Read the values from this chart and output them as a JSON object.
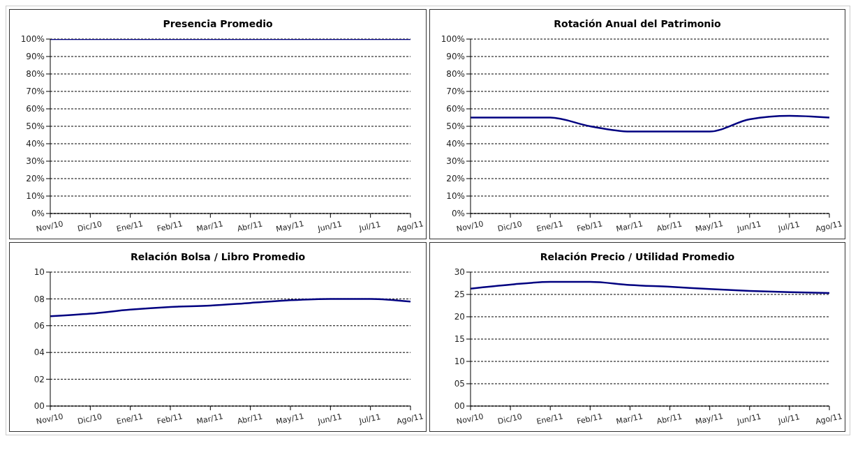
{
  "chart_data": [
    {
      "type": "line",
      "title": "Presencia Promedio",
      "categories": [
        "Nov/10",
        "Dic/10",
        "Ene/11",
        "Feb/11",
        "Mar/11",
        "Abr/11",
        "May/11",
        "Jun/11",
        "Jul/11",
        "Ago/11"
      ],
      "series": [
        {
          "color": "#000080",
          "values": [
            100,
            100,
            100,
            100,
            100,
            100,
            100,
            100,
            100,
            100
          ]
        }
      ],
      "ylim": [
        0,
        100
      ],
      "yticks": [
        {
          "value": 0,
          "label": "0%"
        },
        {
          "value": 10,
          "label": "10%"
        },
        {
          "value": 20,
          "label": "20%"
        },
        {
          "value": 30,
          "label": "30%"
        },
        {
          "value": 40,
          "label": "40%"
        },
        {
          "value": 50,
          "label": "50%"
        },
        {
          "value": 60,
          "label": "60%"
        },
        {
          "value": 70,
          "label": "70%"
        },
        {
          "value": 80,
          "label": "80%"
        },
        {
          "value": 90,
          "label": "90%"
        },
        {
          "value": 100,
          "label": "100%"
        }
      ],
      "grid": "y"
    },
    {
      "type": "line",
      "title": "Rotación Anual del Patrimonio",
      "categories": [
        "Nov/10",
        "Dic/10",
        "Ene/11",
        "Feb/11",
        "Mar/11",
        "Abr/11",
        "May/11",
        "Jun/11",
        "Jul/11",
        "Ago/11"
      ],
      "series": [
        {
          "color": "#000080",
          "values": [
            55,
            55,
            55,
            50,
            47,
            47,
            47,
            54,
            56,
            55
          ]
        }
      ],
      "ylim": [
        0,
        100
      ],
      "yticks": [
        {
          "value": 0,
          "label": "0%"
        },
        {
          "value": 10,
          "label": "10%"
        },
        {
          "value": 20,
          "label": "20%"
        },
        {
          "value": 30,
          "label": "30%"
        },
        {
          "value": 40,
          "label": "40%"
        },
        {
          "value": 50,
          "label": "50%"
        },
        {
          "value": 60,
          "label": "60%"
        },
        {
          "value": 70,
          "label": "70%"
        },
        {
          "value": 80,
          "label": "80%"
        },
        {
          "value": 90,
          "label": "90%"
        },
        {
          "value": 100,
          "label": "100%"
        }
      ],
      "grid": "y"
    },
    {
      "type": "line",
      "title": "Relación Bolsa / Libro Promedio",
      "categories": [
        "Nov/10",
        "Dic/10",
        "Ene/11",
        "Feb/11",
        "Mar/11",
        "Abr/11",
        "May/11",
        "Jun/11",
        "Jul/11",
        "Ago/11"
      ],
      "series": [
        {
          "color": "#000080",
          "values": [
            6.7,
            6.9,
            7.2,
            7.4,
            7.5,
            7.7,
            7.9,
            8.0,
            8.0,
            7.8
          ]
        }
      ],
      "ylim": [
        0,
        10
      ],
      "yticks": [
        {
          "value": 0,
          "label": "00"
        },
        {
          "value": 2,
          "label": "02"
        },
        {
          "value": 4,
          "label": "04"
        },
        {
          "value": 6,
          "label": "06"
        },
        {
          "value": 8,
          "label": "08"
        },
        10
      ],
      "grid": "y"
    },
    {
      "type": "line",
      "title": "Relación Precio / Utilidad Promedio",
      "categories": [
        "Nov/10",
        "Dic/10",
        "Ene/11",
        "Feb/11",
        "Mar/11",
        "Abr/11",
        "May/11",
        "Jun/11",
        "Jul/11",
        "Ago/11"
      ],
      "series": [
        {
          "color": "#000080",
          "values": [
            26.3,
            27.2,
            27.8,
            27.8,
            27.1,
            26.7,
            26.2,
            25.8,
            25.5,
            25.3
          ]
        }
      ],
      "ylim": [
        0,
        30
      ],
      "yticks": [
        {
          "value": 0,
          "label": "00"
        },
        {
          "value": 5,
          "label": "05"
        },
        10,
        15,
        20,
        25,
        30
      ],
      "grid": "y"
    }
  ]
}
